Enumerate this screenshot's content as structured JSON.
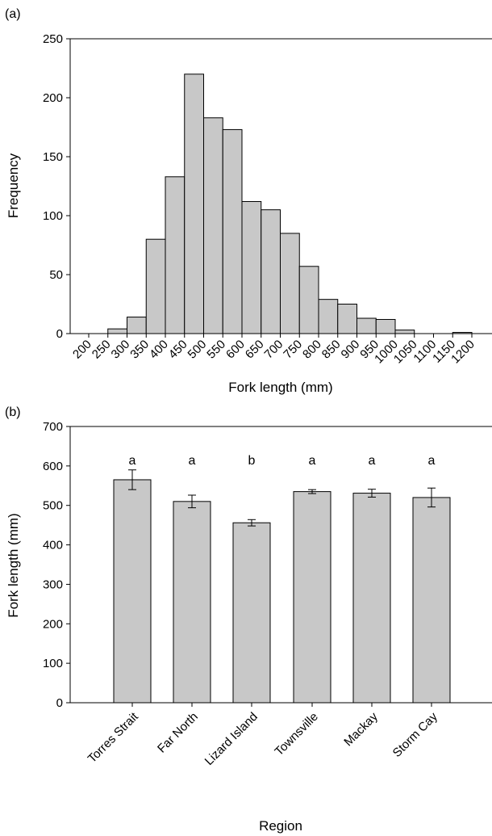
{
  "chart_data": [
    {
      "type": "bar",
      "panel_label": "(a)",
      "xlabel": "Fork length (mm)",
      "ylabel": "Frequency",
      "ylim": [
        0,
        250
      ],
      "yticks": [
        "0",
        "50",
        "100",
        "150",
        "200",
        "250"
      ],
      "bin_edges": [
        "200",
        "250",
        "300",
        "350",
        "400",
        "450",
        "500",
        "550",
        "600",
        "650",
        "700",
        "750",
        "800",
        "850",
        "900",
        "950",
        "1000",
        "1050",
        "1100",
        "1150",
        "1200"
      ],
      "values": [
        0,
        4,
        14,
        80,
        133,
        220,
        183,
        173,
        112,
        105,
        85,
        57,
        29,
        25,
        13,
        12,
        3,
        0,
        0,
        1
      ],
      "bar_color": "#c8c8c8",
      "grid": false
    },
    {
      "type": "bar",
      "panel_label": "(b)",
      "xlabel": "Region",
      "ylabel": "Fork length (mm)",
      "ylim": [
        0,
        700
      ],
      "yticks": [
        "0",
        "100",
        "200",
        "300",
        "400",
        "500",
        "600",
        "700"
      ],
      "categories": [
        "Torres Strait",
        "Far North",
        "Lizard Island",
        "Townsville",
        "Mackay",
        "Storm Cay"
      ],
      "values": [
        565,
        510,
        456,
        535,
        531,
        520
      ],
      "errors": [
        25,
        16,
        8,
        5,
        10,
        24
      ],
      "significance": [
        "a",
        "a",
        "b",
        "a",
        "a",
        "a"
      ],
      "bar_color": "#c8c8c8",
      "grid": false
    }
  ]
}
